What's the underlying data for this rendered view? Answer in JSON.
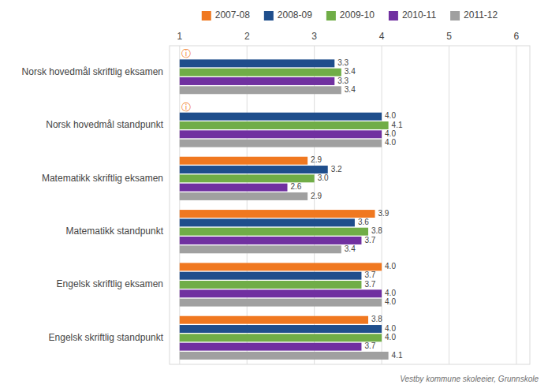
{
  "chart_data": {
    "type": "bar",
    "orientation": "horizontal",
    "categories": [
      "Norsk hovedmål skriftlig eksamen",
      "Norsk hovedmål standpunkt",
      "Matematikk skriftlig eksamen",
      "Matematikk standpunkt",
      "Engelsk skriftlig eksamen",
      "Engelsk skriftlig standpunkt"
    ],
    "base": 1,
    "series": [
      {
        "name": "2007-08",
        "color": "#f07820",
        "values": [
          null,
          null,
          2.9,
          3.9,
          4.0,
          3.8
        ],
        "value_labels": [
          null,
          null,
          "2.9",
          "3.9",
          "4.0",
          "3.8"
        ]
      },
      {
        "name": "2008-09",
        "color": "#1f4e8c",
        "values": [
          3.3,
          4.0,
          3.2,
          3.6,
          3.7,
          4.0
        ],
        "value_labels": [
          "3.3",
          "4.0",
          "3.2",
          "3.6",
          "3.7",
          "4.0"
        ]
      },
      {
        "name": "2009-10",
        "color": "#70ad47",
        "values": [
          3.4,
          4.1,
          3.0,
          3.8,
          3.7,
          4.0
        ],
        "value_labels": [
          "3.4",
          "4.1",
          "3.0",
          "3.8",
          "3.7",
          "4.0"
        ]
      },
      {
        "name": "2010-11",
        "color": "#7030a0",
        "values": [
          3.3,
          4.0,
          2.6,
          3.7,
          4.0,
          3.7
        ],
        "value_labels": [
          "3.3",
          "4.0",
          "2.6",
          "3.7",
          "4.0",
          "3.7"
        ]
      },
      {
        "name": "2011-12",
        "color": "#a0a0a0",
        "values": [
          3.4,
          4.0,
          2.9,
          3.4,
          4.0,
          4.1
        ],
        "value_labels": [
          "3.4",
          "4.0",
          "2.9",
          "3.4",
          "4.0",
          "4.1"
        ]
      }
    ],
    "xlim": [
      0.85,
      6.2
    ],
    "xticks": [
      1,
      2,
      3,
      4,
      5,
      6
    ],
    "grid": true,
    "legend": "top",
    "data_labels": true,
    "annotations": [
      {
        "text": "Vestby kommune skoleeier, Grunnskole"
      },
      {
        "text": "ⓘ",
        "category": "Norsk hovedmål skriftlig eksamen",
        "color": "#f07820"
      },
      {
        "text": "ⓘ",
        "category": "Norsk hovedmål standpunkt",
        "color": "#f07820"
      }
    ]
  }
}
